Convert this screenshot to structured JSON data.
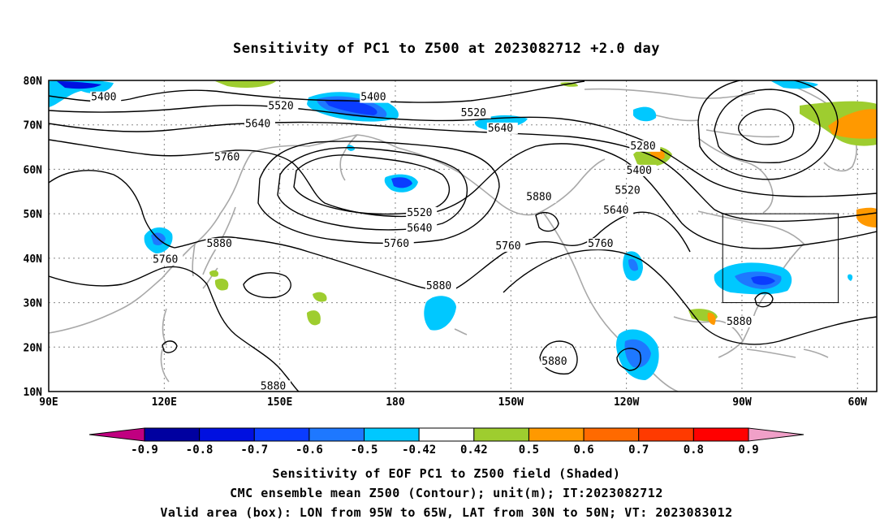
{
  "title": "Sensitivity of PC1 to Z500 at 2023082712 +2.0 day",
  "map": {
    "lon_range": [
      90,
      305
    ],
    "lat_range": [
      10,
      80
    ],
    "lat_labels": [
      "80N",
      "70N",
      "60N",
      "50N",
      "40N",
      "30N",
      "20N",
      "10N"
    ],
    "lon_labels": [
      "90E",
      "120E",
      "150E",
      "180",
      "150W",
      "120W",
      "90W",
      "60W"
    ],
    "contour_labels": [
      {
        "text": "5400",
        "lon": 101,
        "lat": 75.5
      },
      {
        "text": "5400",
        "lon": 171,
        "lat": 75.5
      },
      {
        "text": "5520",
        "lon": 147,
        "lat": 73.5
      },
      {
        "text": "5520",
        "lon": 197,
        "lat": 72
      },
      {
        "text": "5640",
        "lon": 141,
        "lat": 69.5
      },
      {
        "text": "5640",
        "lon": 204,
        "lat": 68.5
      },
      {
        "text": "5760",
        "lon": 133,
        "lat": 62
      },
      {
        "text": "5520",
        "lon": 183,
        "lat": 49.5
      },
      {
        "text": "5640",
        "lon": 183,
        "lat": 46
      },
      {
        "text": "5760",
        "lon": 177,
        "lat": 42.5
      },
      {
        "text": "5880",
        "lon": 131,
        "lat": 42.5
      },
      {
        "text": "5760",
        "lon": 117,
        "lat": 39
      },
      {
        "text": "5880",
        "lon": 188,
        "lat": 33
      },
      {
        "text": "5760",
        "lon": 206,
        "lat": 42
      },
      {
        "text": "5880",
        "lon": 214,
        "lat": 53
      },
      {
        "text": "5640",
        "lon": 234,
        "lat": 50
      },
      {
        "text": "5760",
        "lon": 230,
        "lat": 42.5
      },
      {
        "text": "5520",
        "lon": 237,
        "lat": 54.5
      },
      {
        "text": "5400",
        "lon": 240,
        "lat": 59
      },
      {
        "text": "5280",
        "lon": 241,
        "lat": 64.5
      },
      {
        "text": "5880",
        "lon": 218,
        "lat": 16
      },
      {
        "text": "5880",
        "lon": 145,
        "lat": 10.5
      },
      {
        "text": "5880",
        "lon": 266,
        "lat": 25
      }
    ],
    "box": {
      "lon_w": -95,
      "lon_e": -65,
      "lat_s": 30,
      "lat_n": 50
    },
    "colors": {
      "land": "#a8a8a8",
      "contour": "#000000",
      "grid": "#888888"
    }
  },
  "colorbar": {
    "colors": [
      "#c00080",
      "#0000a0",
      "#0010e0",
      "#0a3cff",
      "#1e78ff",
      "#00c8ff",
      "#ffffff",
      "#9ecd2f",
      "#ff9900",
      "#ff6a00",
      "#ff3a00",
      "#ff0000",
      "#f0a0c8"
    ],
    "tick_labels": [
      "-0.9",
      "-0.8",
      "-0.7",
      "-0.6",
      "-0.5",
      "-0.42",
      "0.42",
      "0.5",
      "0.6",
      "0.7",
      "0.8",
      "0.9"
    ]
  },
  "footer": {
    "line1": "Sensitivity of EOF PC1 to Z500 field (Shaded)",
    "line2": "CMC ensemble mean Z500 (Contour); unit(m); IT:2023082712",
    "line3": "Valid area (box): LON from 95W to 65W, LAT from 30N to 50N; VT: 2023083012"
  }
}
